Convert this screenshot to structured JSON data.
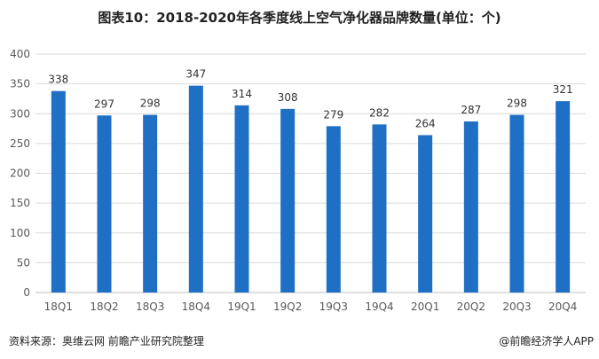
{
  "title": "图表10：2018-2020年各季度线上空气净化器品牌数量(单位：个)",
  "chart_data": {
    "type": "bar",
    "title": "图表10：2018-2020年各季度线上空气净化器品牌数量(单位：个)",
    "categories": [
      "18Q1",
      "18Q2",
      "18Q3",
      "18Q4",
      "19Q1",
      "19Q2",
      "19Q3",
      "19Q4",
      "20Q1",
      "20Q2",
      "20Q3",
      "20Q4"
    ],
    "values": [
      338,
      297,
      298,
      347,
      314,
      308,
      279,
      282,
      264,
      287,
      298,
      321
    ],
    "ylim": [
      0,
      400
    ],
    "yticks": [
      0,
      50,
      100,
      150,
      200,
      250,
      300,
      350,
      400
    ],
    "xlabel": "",
    "ylabel": "",
    "grid": true,
    "bar_color": "#1f6fc5",
    "data_labels": true
  },
  "footer": {
    "source": "资料来源：奥维云网 前瞻产业研究院整理",
    "brand": "@前瞻经济学人APP"
  },
  "colors": {
    "bar": "#1f6fc5",
    "grid": "#d9d9d9",
    "axis_text": "#595959"
  }
}
